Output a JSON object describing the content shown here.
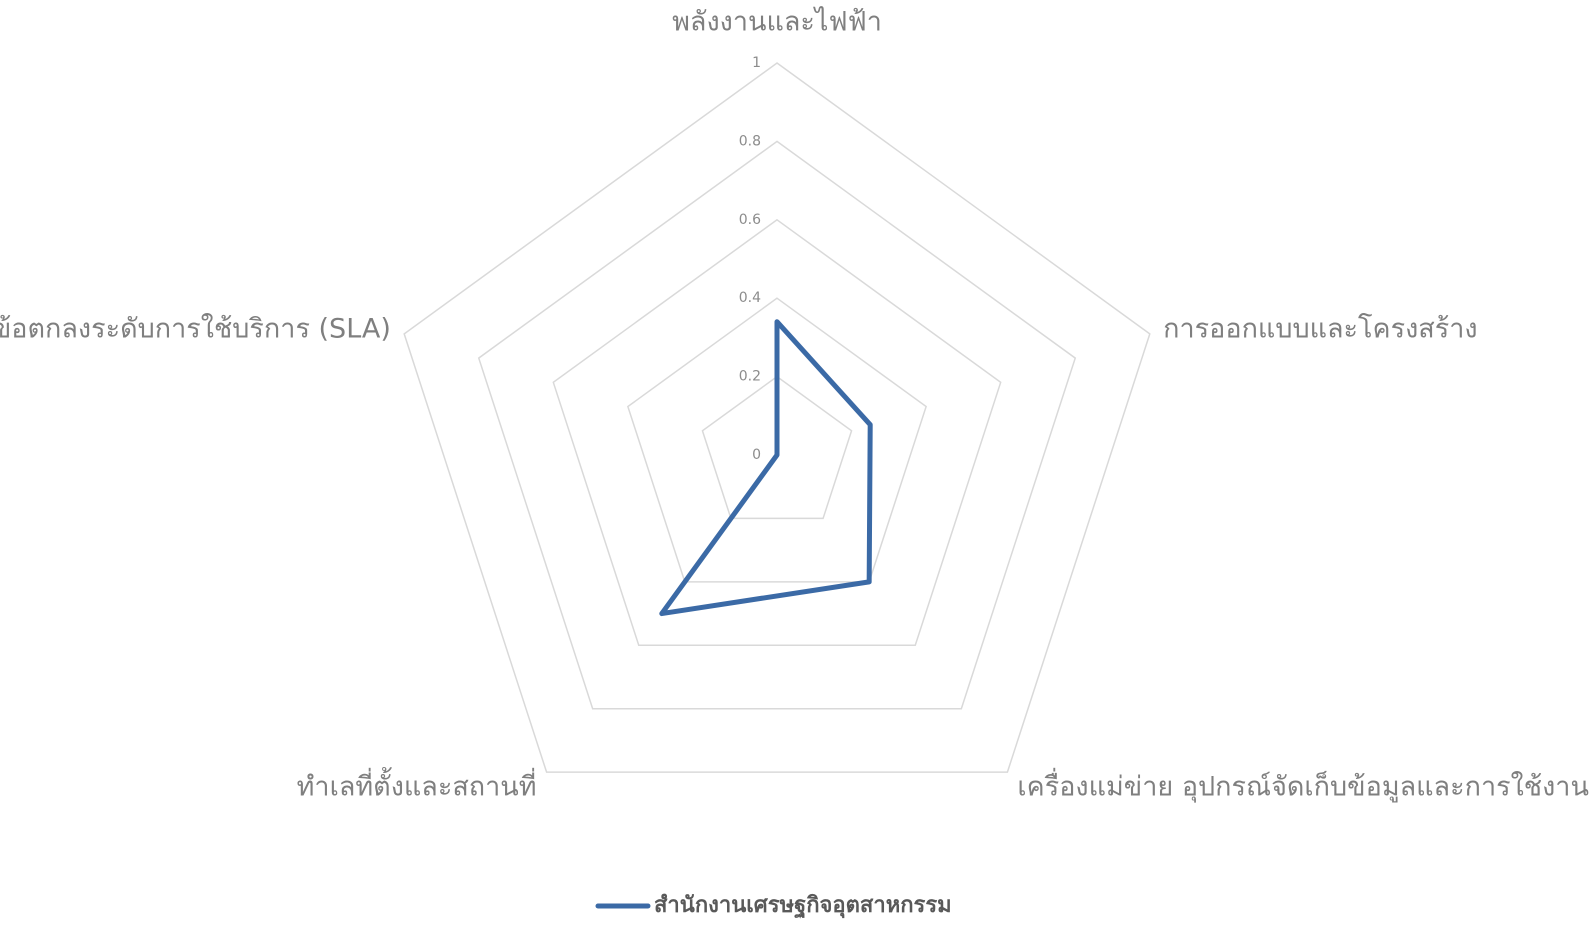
{
  "chart_data": {
    "type": "radar",
    "categories": [
      "พลังงานและไฟฟ้า",
      "การออกแบบและโครงสร้าง",
      "เครื่องแม่ข่าย อุปกรณ์จัดเก็บข้อมูลและการใช้งาน",
      "ทำเลที่ตั้งและสถานที่",
      "ข้อตกลงระดับการใช้บริการ (SLA)"
    ],
    "series": [
      {
        "name": "สำนักงานเศรษฐกิจอุตสาหกรรม",
        "color": "#3b6aa6",
        "values": [
          0.34,
          0.25,
          0.4,
          0.5,
          0
        ]
      }
    ],
    "ylim": [
      0,
      1
    ],
    "yticks": [
      0,
      0.2,
      0.4,
      0.6,
      0.8,
      1
    ],
    "grid": true,
    "legend": "bottom"
  }
}
